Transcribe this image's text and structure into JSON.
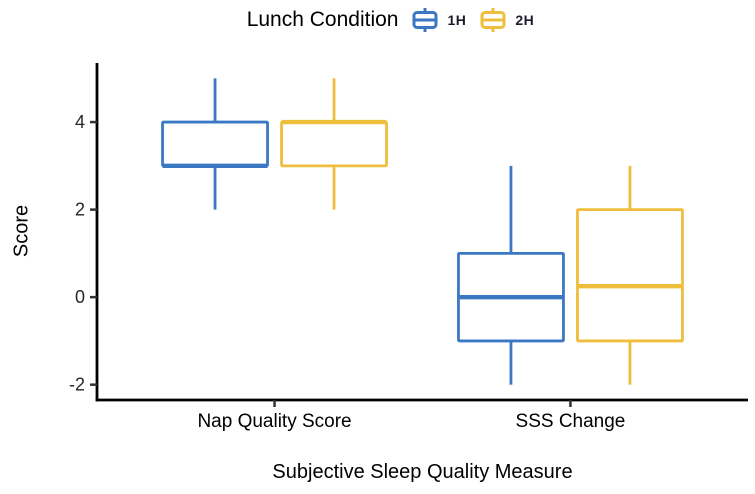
{
  "chart_data": {
    "type": "boxplot",
    "legend_title": "Lunch Condition",
    "legend_position": "top",
    "xlabel": "Subjective Sleep Quality Measure",
    "ylabel": "Score",
    "categories": [
      "Nap Quality Score",
      "SSS Change"
    ],
    "y_ticks": [
      4,
      2,
      0,
      -2
    ],
    "ylim": [
      -2.35,
      5.35
    ],
    "grid": false,
    "axis_color": "#000000",
    "tick_label_color": "#26262e",
    "series": [
      {
        "name": "1H",
        "color": "#3B78C3",
        "boxes": [
          {
            "category": "Nap Quality Score",
            "whisker_low": 2,
            "q1": 3,
            "median": 3,
            "q3": 4,
            "whisker_high": 5
          },
          {
            "category": "SSS Change",
            "whisker_low": -2,
            "q1": -1,
            "median": 0,
            "q3": 1,
            "whisker_high": 3
          }
        ]
      },
      {
        "name": "2H",
        "color": "#EFBE3D",
        "boxes": [
          {
            "category": "Nap Quality Score",
            "whisker_low": 2,
            "q1": 3,
            "median": 4,
            "q3": 4,
            "whisker_high": 5
          },
          {
            "category": "SSS Change",
            "whisker_low": -2,
            "q1": -1,
            "median": 0.25,
            "q3": 2,
            "whisker_high": 3
          }
        ]
      }
    ]
  }
}
